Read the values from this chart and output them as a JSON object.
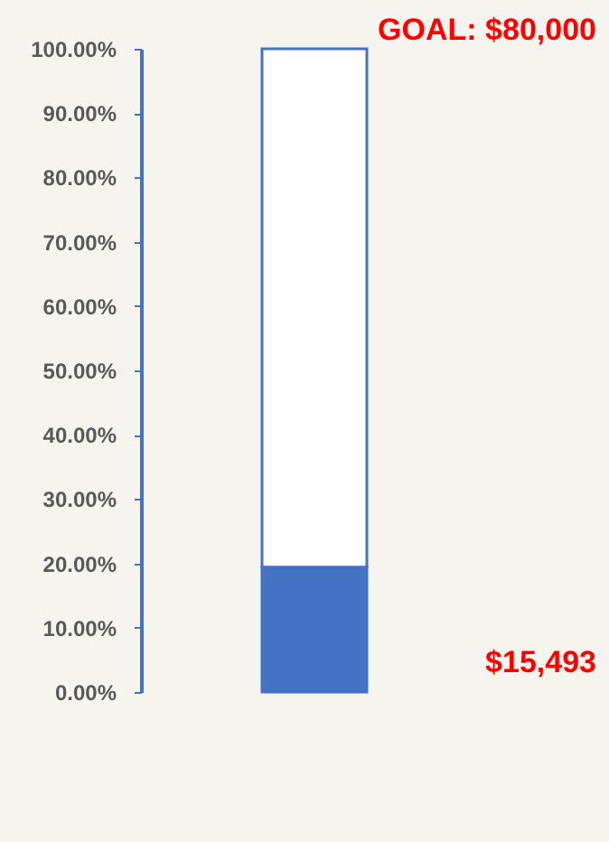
{
  "chart_data": {
    "type": "bar",
    "categories": [
      null
    ],
    "stacked": true,
    "series": [
      {
        "color": "#4472c4",
        "values": [
          19.4
        ]
      },
      {
        "color": "#ffffff",
        "values": [
          80.6
        ]
      }
    ],
    "ylim": [
      0,
      100
    ],
    "yticks": [
      {
        "value": 0,
        "label": "0.00%"
      },
      {
        "value": 10,
        "label": "10.00%"
      },
      {
        "value": 20,
        "label": "20.00%"
      },
      {
        "value": 30,
        "label": "30.00%"
      },
      {
        "value": 40,
        "label": "40.00%"
      },
      {
        "value": 50,
        "label": "50.00%"
      },
      {
        "value": 60,
        "label": "60.00%"
      },
      {
        "value": 70,
        "label": "70.00%"
      },
      {
        "value": 80,
        "label": "80.00%"
      },
      {
        "value": 90,
        "label": "90.00%"
      },
      {
        "value": 100,
        "label": "100.00%"
      }
    ],
    "tick_labels": "y",
    "annotations": [
      "GOAL: $80,000",
      "$15,493"
    ]
  }
}
